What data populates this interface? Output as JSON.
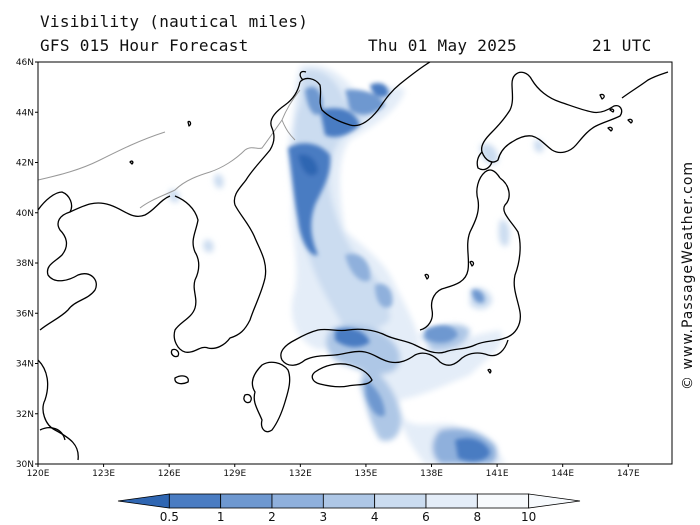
{
  "header": {
    "title": "Visibility (nautical miles)",
    "model": "GFS 015 Hour Forecast",
    "date": "Thu 01 May 2025",
    "time": "21 UTC"
  },
  "map": {
    "lat_labels": [
      "46N",
      "44N",
      "42N",
      "40N",
      "38N",
      "36N",
      "34N",
      "32N",
      "30N"
    ],
    "lon_labels": [
      "120E",
      "123E",
      "126E",
      "129E",
      "132E",
      "135E",
      "138E",
      "141E",
      "144E",
      "147E"
    ],
    "lat_range": [
      30,
      46
    ],
    "lon_range": [
      120,
      149
    ],
    "land_color": "#000000",
    "border_color": "#999999"
  },
  "legend": {
    "labels": [
      "0.5",
      "1",
      "2",
      "3",
      "4",
      "6",
      "8",
      "10"
    ],
    "colors": [
      "#2f66b2",
      "#4a7cc2",
      "#6e98d0",
      "#8fb0dc",
      "#aec7e6",
      "#cbdcf0",
      "#e4edf8",
      "#f7fafd"
    ]
  },
  "credit": "© www.PassageWeather.com"
}
